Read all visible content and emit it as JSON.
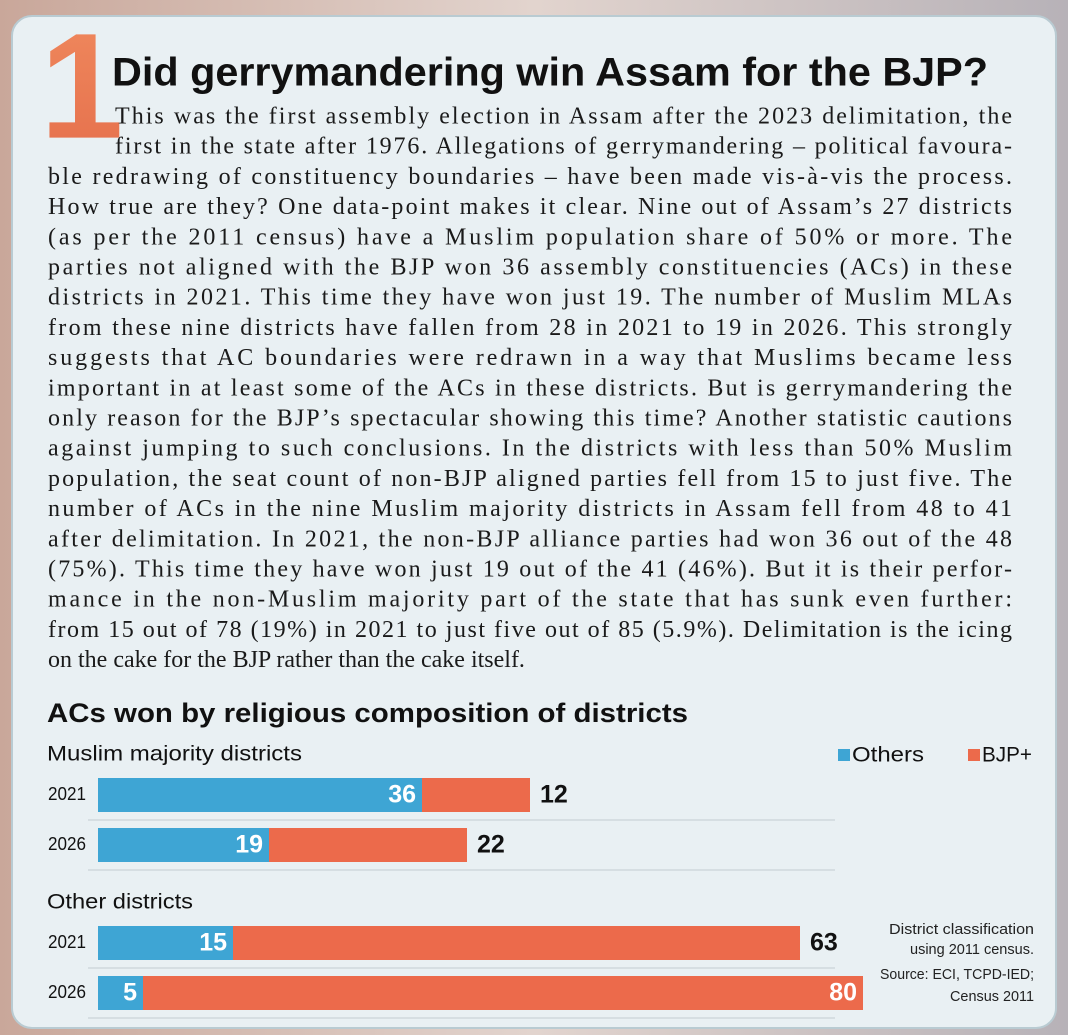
{
  "header": {
    "number": "1",
    "title": "Did gerrymandering win Assam for the BJP?"
  },
  "body": {
    "lines": [
      "This was the first assembly election in Assam after the 2023 delimitation, the",
      "first in the state after 1976. Allegations of gerrymandering – political favoura-",
      "ble redrawing of constituency boundaries – have been made vis-à-vis the process.",
      "How true are they? One data-point makes it clear. Nine out of Assam’s 27 districts",
      "(as per the 2011 census) have a Muslim population share of 50% or more. The",
      "parties not aligned with the BJP won 36 assembly constituencies (ACs) in these",
      "districts in 2021. This time they have won just 19. The number of Muslim MLAs",
      "from these nine districts have fallen from 28 in 2021 to 19 in 2026. This strongly",
      "suggests that AC boundaries were redrawn in a way that Muslims became less",
      "important in at least some of the ACs in these districts. But is gerrymandering the",
      "only reason for the BJP’s spectacular showing this time? Another statistic cautions",
      "against jumping to such conclusions. In the districts with less than 50% Muslim",
      "population, the seat count of non-BJP aligned parties fell from 15 to just five. The",
      "number of ACs in the nine Muslim majority districts in Assam fell from 48 to 41",
      "after delimitation. In 2021, the non-BJP alliance parties had won 36 out of the 48",
      "(75%). This time they have won just 19 out of the 41 (46%). But it is their perfor-",
      "mance in the non-Muslim majority part of the state that has sunk even further:",
      "from 15 out of 78 (19%) in 2021 to just five out of 85 (5.9%). Delimitation is the icing",
      "on the cake for the BJP rather than the cake itself."
    ]
  },
  "chart_data": {
    "type": "bar",
    "orientation": "horizontal",
    "stacked": true,
    "title": "ACs won by religious composition of districts",
    "groups": [
      {
        "label": "Muslim majority districts",
        "categories": [
          "2021",
          "2026"
        ]
      },
      {
        "label": "Other districts",
        "categories": [
          "2021",
          "2026"
        ]
      }
    ],
    "series": [
      {
        "name": "Others",
        "color": "#3ea5d4",
        "values": [
          36,
          19,
          15,
          5
        ]
      },
      {
        "name": "BJP+",
        "color": "#ec6a4b",
        "values": [
          12,
          22,
          63,
          80
        ]
      }
    ],
    "legend": "top-right",
    "footnote": [
      "District classification",
      "using 2011 census."
    ],
    "source": [
      "Source: ECI, TCPD-IED;",
      "Census 2011"
    ]
  }
}
